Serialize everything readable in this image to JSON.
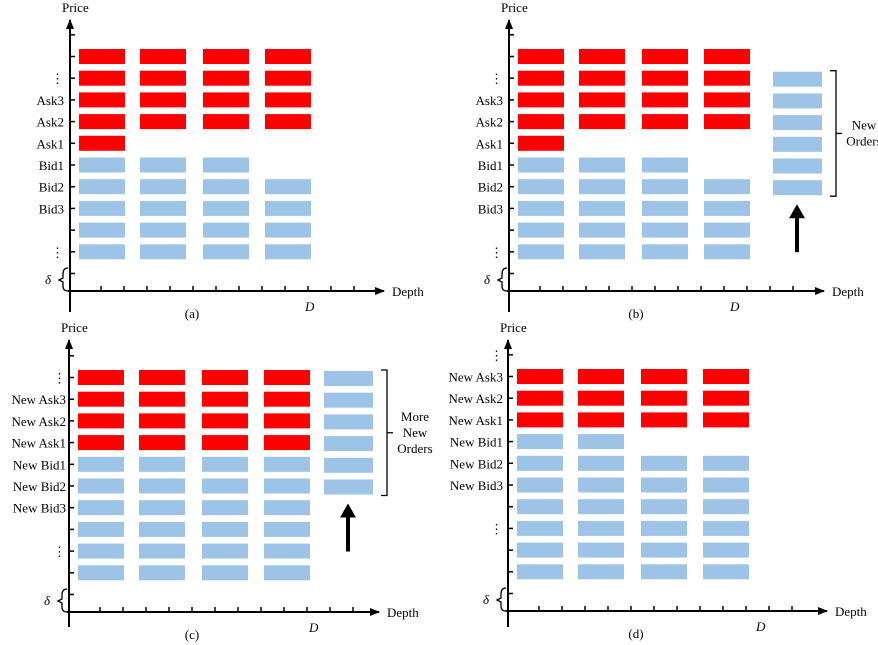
{
  "colors": {
    "ask": "#ff0000",
    "bid": "#9dc3e6",
    "axis": "#000000"
  },
  "common": {
    "y_axis_label": "Price",
    "x_axis_label": "Depth",
    "delta_label": "δ",
    "d_label": "D",
    "vdots": "⋮"
  },
  "panels": [
    {
      "id": "a",
      "caption": "(a)",
      "price_labels": [
        "⋮",
        "Ask3",
        "Ask2",
        "Ask1",
        "Bid1",
        "Bid2",
        "Bid3",
        "⋮"
      ],
      "ask_row_counts": [
        4,
        4,
        4,
        4,
        1
      ],
      "bid_row_counts": [
        3,
        4,
        4,
        4,
        4
      ],
      "new_orders": null
    },
    {
      "id": "b",
      "caption": "(b)",
      "price_labels": [
        "⋮",
        "Ask3",
        "Ask2",
        "Ask1",
        "Bid1",
        "Bid2",
        "Bid3",
        "⋮"
      ],
      "ask_row_counts": [
        4,
        4,
        4,
        4,
        1
      ],
      "bid_row_counts": [
        3,
        4,
        4,
        4,
        4
      ],
      "new_orders": {
        "count": 6,
        "label_lines": [
          "New",
          "Orders"
        ]
      }
    },
    {
      "id": "c",
      "caption": "(c)",
      "price_labels": [
        "⋮",
        "New Ask3",
        "New Ask2",
        "New Ask1",
        "New Bid1",
        "New Bid2",
        "New Bid3",
        "⋮"
      ],
      "ask_row_counts": [
        4,
        4,
        4,
        4
      ],
      "bid_row_counts": [
        4,
        4,
        4,
        4,
        4,
        4
      ],
      "new_orders": {
        "count": 6,
        "label_lines": [
          "More",
          "New",
          "Orders"
        ]
      }
    },
    {
      "id": "d",
      "caption": "(d)",
      "price_labels": [
        "⋮",
        "New Ask3",
        "New Ask2",
        "New Ask1",
        "New Bid1",
        "New Bid2",
        "New Bid3",
        "⋮"
      ],
      "ask_row_counts": [
        4,
        4,
        4
      ],
      "bid_row_counts": [
        2,
        4,
        4,
        4,
        4,
        4,
        4
      ],
      "new_orders": null
    }
  ]
}
